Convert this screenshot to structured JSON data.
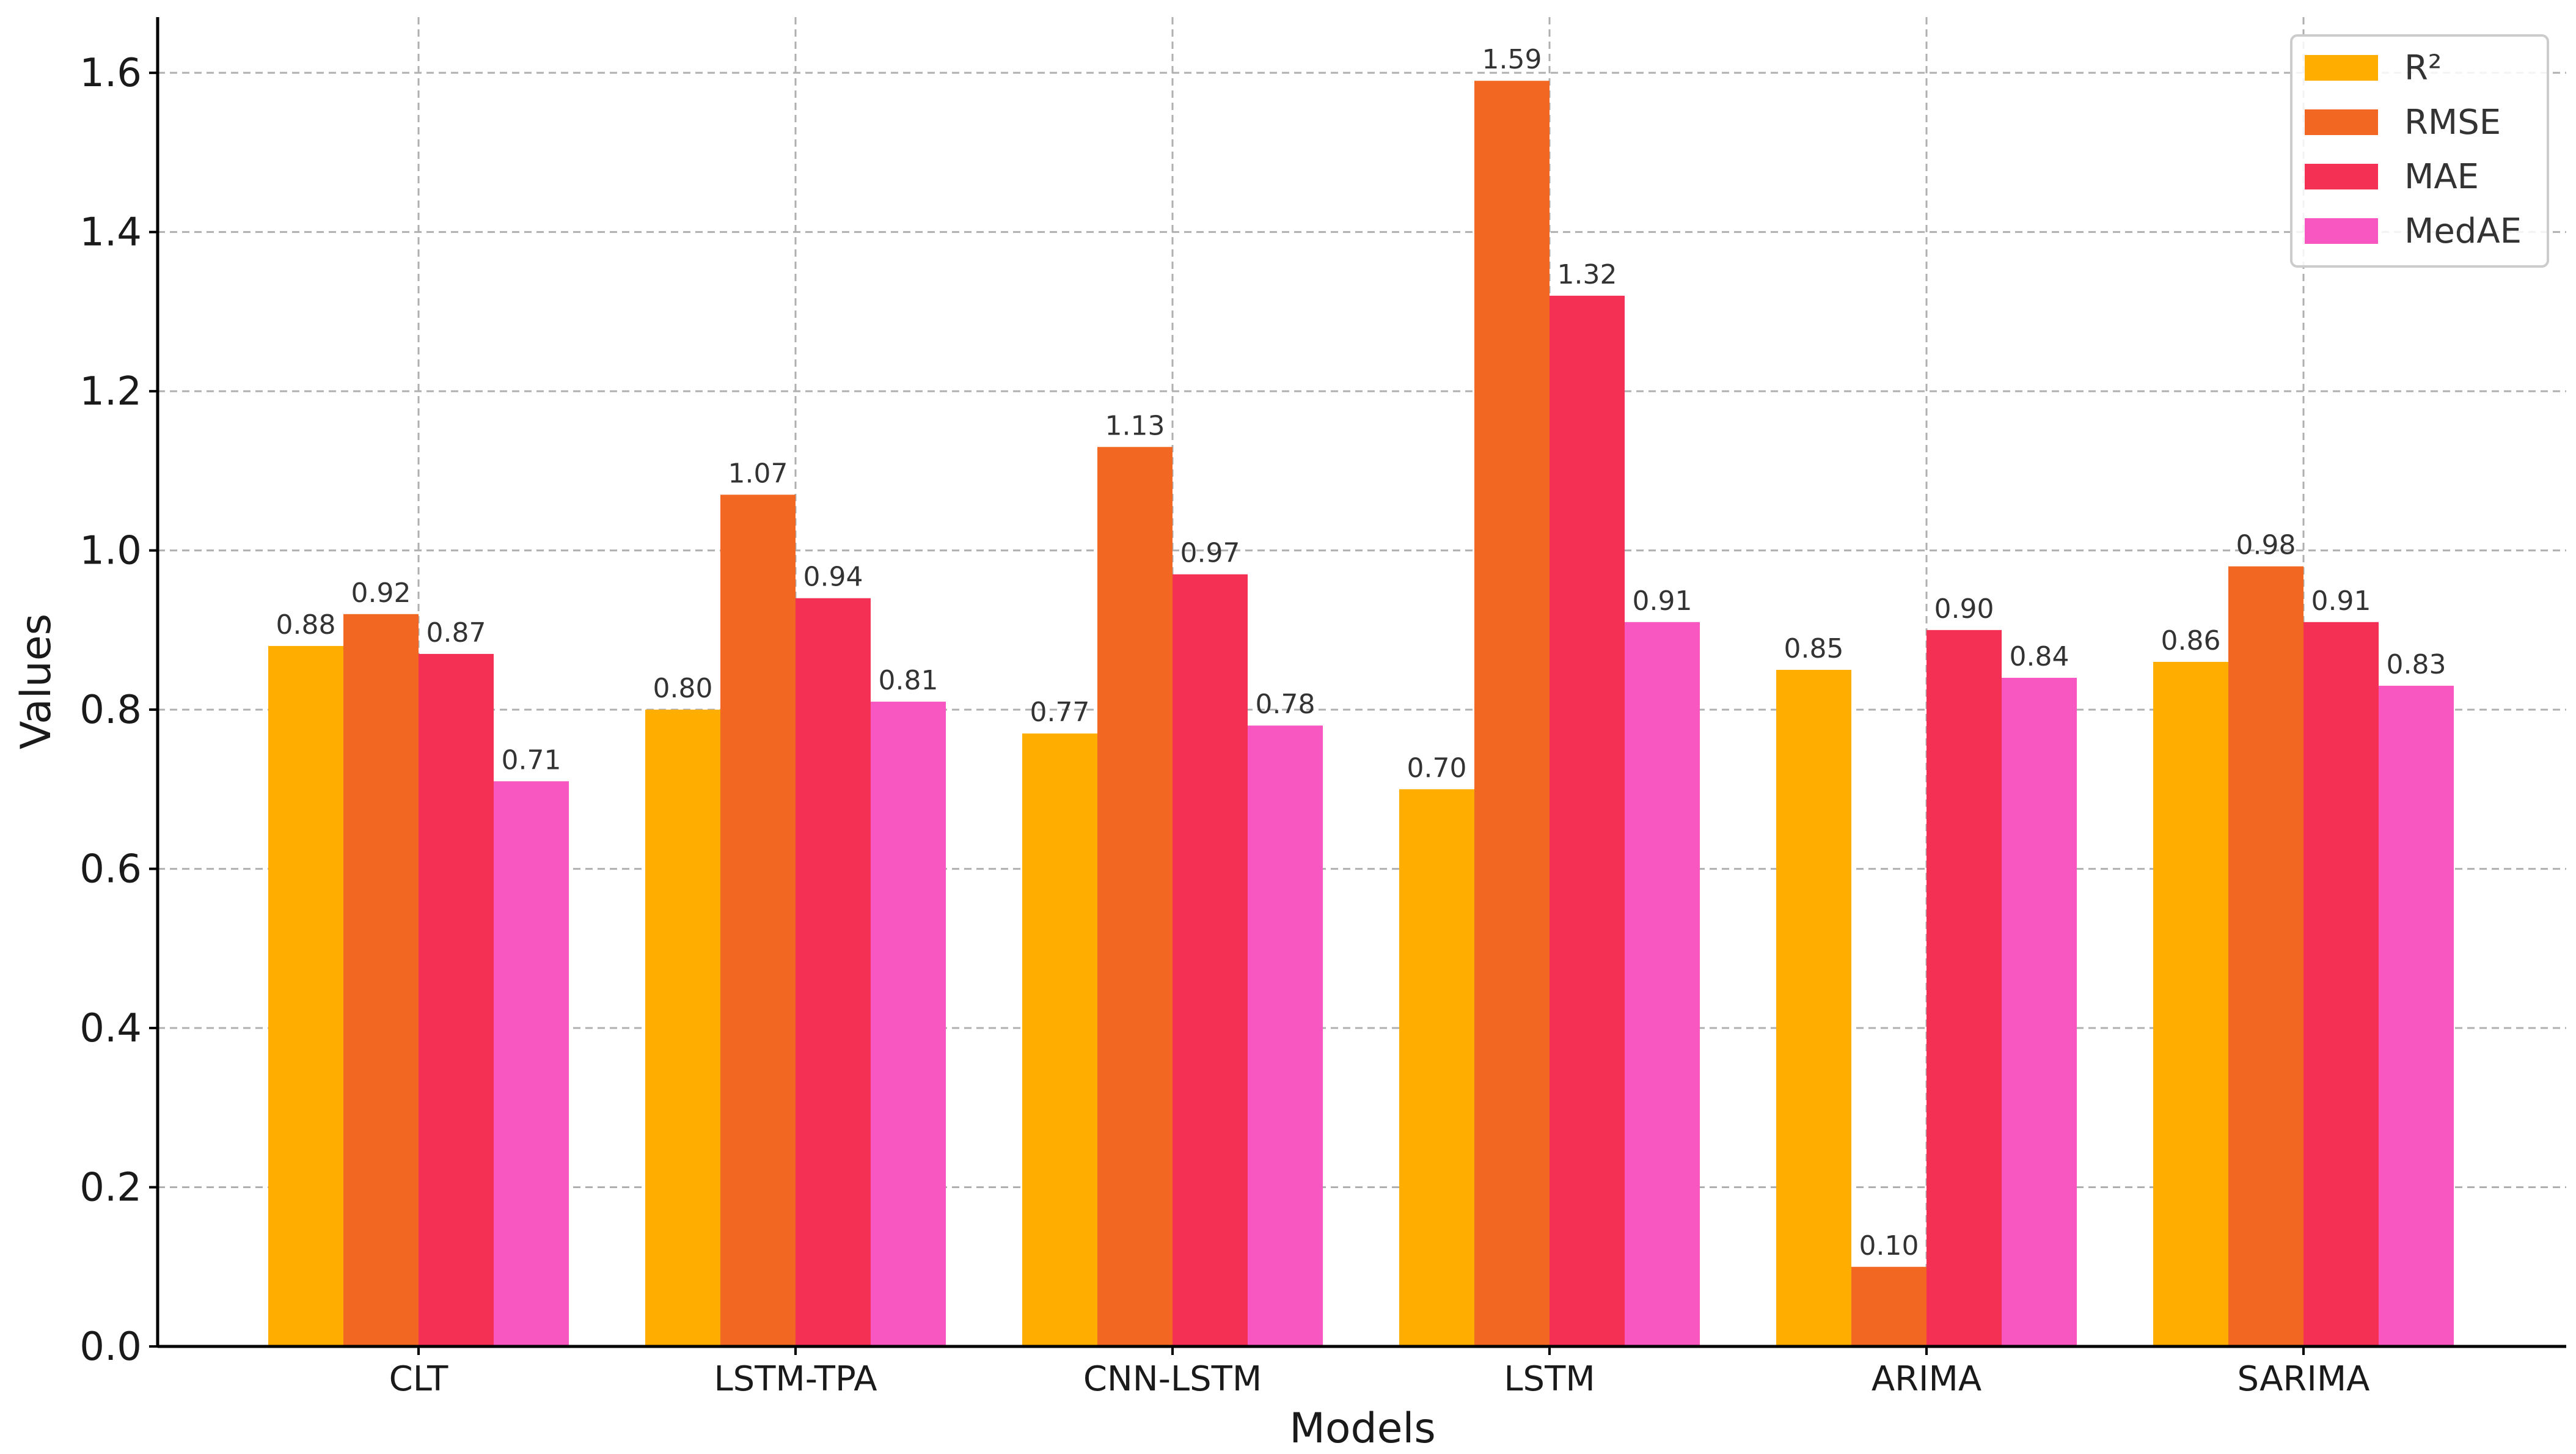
{
  "chart_data": {
    "type": "bar",
    "title": "",
    "xlabel": "Models",
    "ylabel": "Values",
    "ylim": [
      0,
      1.67
    ],
    "yticks": [
      "0.0",
      "0.2",
      "0.4",
      "0.6",
      "0.8",
      "1.0",
      "1.2",
      "1.4",
      "1.6"
    ],
    "ytick_values": [
      0,
      0.2,
      0.4,
      0.6,
      0.8,
      1.0,
      1.2,
      1.4,
      1.6
    ],
    "grid": true,
    "legend_position": "top-right",
    "categories": [
      "CLT",
      "LSTM-TPA",
      "CNN-LSTM",
      "LSTM",
      "ARIMA",
      "SARIMA"
    ],
    "series": [
      {
        "name": "R²",
        "color": "#FFAE00",
        "values": [
          0.88,
          0.8,
          0.77,
          0.7,
          0.85,
          0.86
        ],
        "labels": [
          "0.88",
          "0.80",
          "0.77",
          "0.70",
          "0.85",
          "0.86"
        ]
      },
      {
        "name": "RMSE",
        "color": "#F26722",
        "values": [
          0.92,
          1.07,
          1.13,
          1.59,
          0.1,
          0.98
        ],
        "labels": [
          "0.92",
          "1.07",
          "1.13",
          "1.59",
          "0.10",
          "0.98"
        ]
      },
      {
        "name": "MAE",
        "color": "#F53055",
        "values": [
          0.87,
          0.94,
          0.97,
          1.32,
          0.9,
          0.91
        ],
        "labels": [
          "0.87",
          "0.94",
          "0.97",
          "1.32",
          "0.90",
          "0.91"
        ]
      },
      {
        "name": "MedAE",
        "color": "#F857C1",
        "values": [
          0.71,
          0.81,
          0.78,
          0.91,
          0.84,
          0.83
        ],
        "labels": [
          "0.71",
          "0.81",
          "0.78",
          "0.91",
          "0.84",
          "0.83"
        ]
      }
    ]
  }
}
